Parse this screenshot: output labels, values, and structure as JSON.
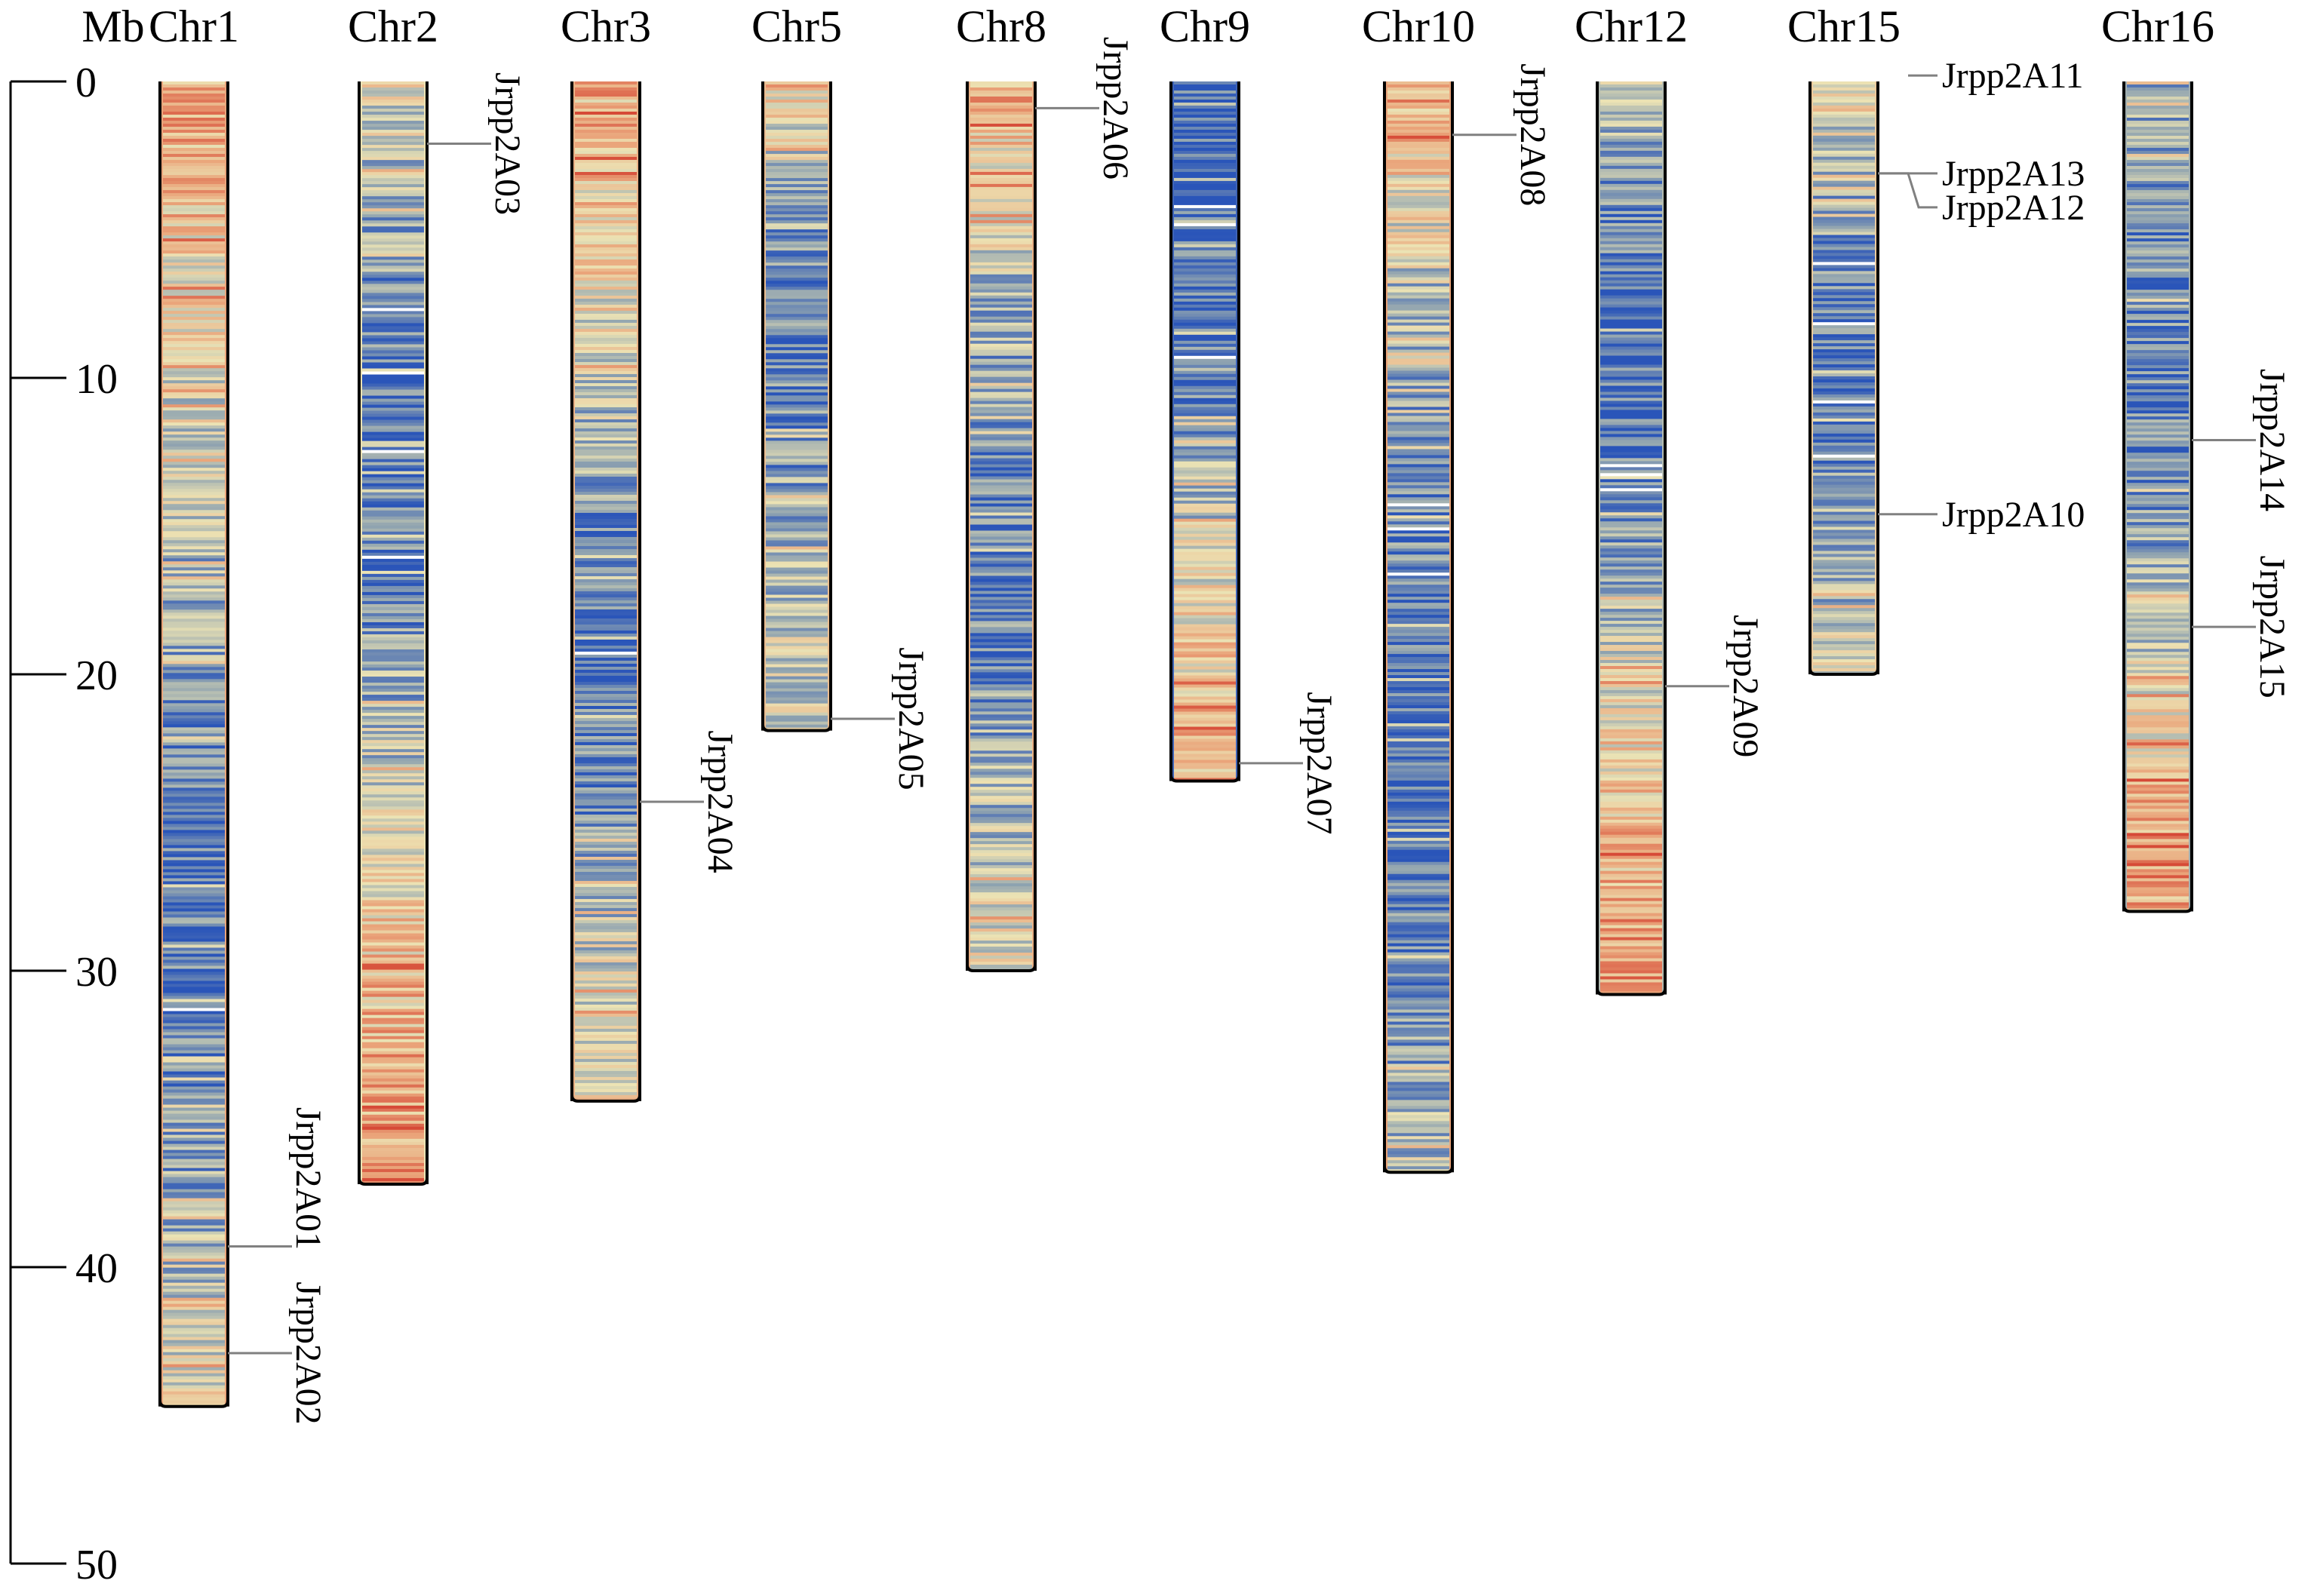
{
  "axis": {
    "unit_label": "Mb",
    "ticks": [
      0,
      10,
      20,
      30,
      40,
      50
    ],
    "range": [
      0,
      50
    ]
  },
  "color_scale": {
    "low": "#2a55b9",
    "mid_low": "#8ea2b0",
    "mid": "#ece3b4",
    "mid_high": "#eaa47a",
    "high": "#d64a37"
  },
  "chromosomes": [
    {
      "name": "Chr1",
      "length": 44.7,
      "density_profile": [
        0.75,
        0.6,
        0.45,
        0.35,
        0.25,
        0.15,
        0.12,
        0.2,
        0.35,
        0.5
      ],
      "genes": [
        {
          "name": "Jrpp2A01",
          "position": 39.3
        },
        {
          "name": "Jrpp2A02",
          "position": 42.9
        }
      ]
    },
    {
      "name": "Chr2",
      "length": 37.2,
      "density_profile": [
        0.5,
        0.3,
        0.15,
        0.1,
        0.15,
        0.3,
        0.45,
        0.6,
        0.7,
        0.8
      ],
      "genes": [
        {
          "name": "Jrpp2A03",
          "position": 2.1
        }
      ]
    },
    {
      "name": "Chr3",
      "length": 34.4,
      "density_profile": [
        0.7,
        0.6,
        0.5,
        0.35,
        0.15,
        0.1,
        0.15,
        0.3,
        0.45,
        0.5
      ],
      "genes": [
        {
          "name": "Jrpp2A04",
          "position": 24.3
        }
      ]
    },
    {
      "name": "Chr5",
      "length": 21.9,
      "density_profile": [
        0.65,
        0.4,
        0.25,
        0.2,
        0.15,
        0.2,
        0.3,
        0.35,
        0.4,
        0.45
      ],
      "genes": [
        {
          "name": "Jrpp2A05",
          "position": 21.5
        }
      ]
    },
    {
      "name": "Chr8",
      "length": 30.0,
      "density_profile": [
        0.7,
        0.55,
        0.35,
        0.25,
        0.15,
        0.12,
        0.2,
        0.3,
        0.4,
        0.5
      ],
      "genes": [
        {
          "name": "Jrpp2A06",
          "position": 0.9
        }
      ]
    },
    {
      "name": "Chr9",
      "length": 23.6,
      "density_profile": [
        0.05,
        0.05,
        0.08,
        0.1,
        0.2,
        0.3,
        0.45,
        0.55,
        0.6,
        0.7
      ],
      "genes": [
        {
          "name": "Jrpp2A07",
          "position": 23.0
        }
      ]
    },
    {
      "name": "Chr10",
      "length": 36.8,
      "density_profile": [
        0.75,
        0.5,
        0.3,
        0.2,
        0.15,
        0.1,
        0.1,
        0.15,
        0.25,
        0.35
      ],
      "genes": [
        {
          "name": "Jrpp2A08",
          "position": 1.8
        }
      ]
    },
    {
      "name": "Chr12",
      "length": 30.8,
      "density_profile": [
        0.35,
        0.2,
        0.1,
        0.1,
        0.15,
        0.3,
        0.5,
        0.6,
        0.7,
        0.8
      ],
      "genes": [
        {
          "name": "Jrpp2A09",
          "position": 20.4
        }
      ]
    },
    {
      "name": "Chr15",
      "length": 20.0,
      "density_profile": [
        0.6,
        0.35,
        0.25,
        0.15,
        0.1,
        0.15,
        0.2,
        0.3,
        0.35,
        0.45
      ],
      "genes": [
        {
          "name": "Jrpp2A11",
          "position": -0.2
        },
        {
          "name": "Jrpp2A13",
          "position": 3.1
        },
        {
          "name": "Jrpp2A12",
          "position": 3.1
        },
        {
          "name": "Jrpp2A10",
          "position": 14.6
        }
      ]
    },
    {
      "name": "Chr16",
      "length": 28.0,
      "density_profile": [
        0.3,
        0.25,
        0.2,
        0.15,
        0.15,
        0.25,
        0.4,
        0.55,
        0.75,
        0.75
      ],
      "genes": [
        {
          "name": "Jrpp2A14",
          "position": 12.1
        },
        {
          "name": "Jrpp2A15",
          "position": 18.4
        }
      ]
    }
  ]
}
